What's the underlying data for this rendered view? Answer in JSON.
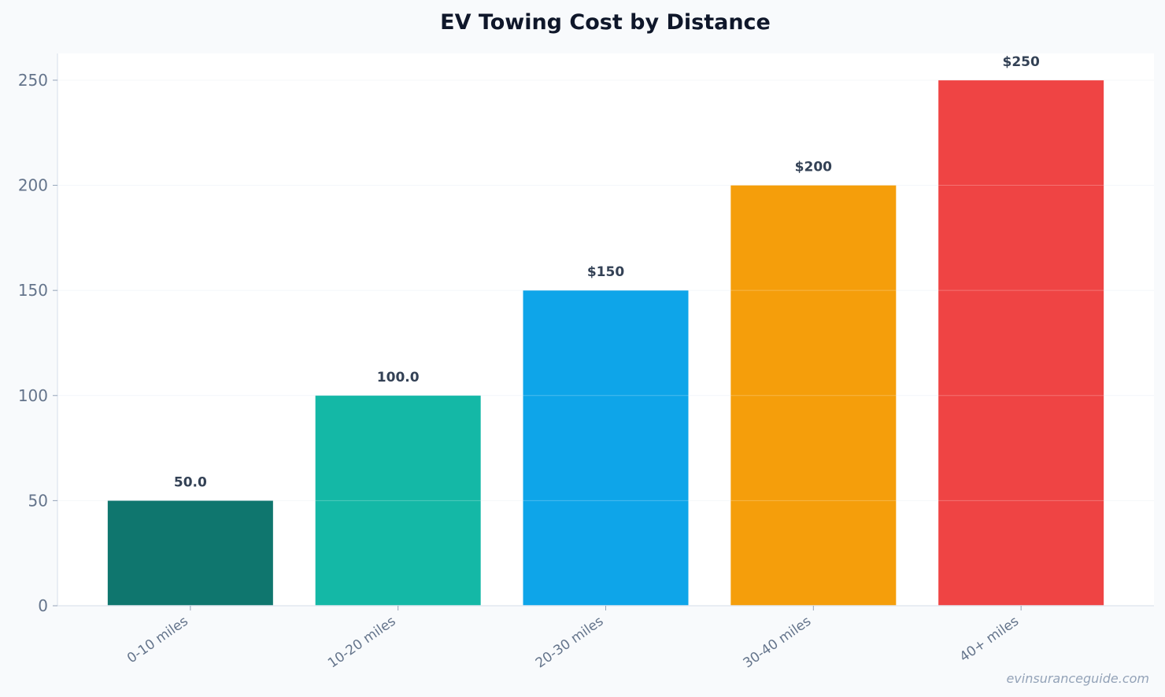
{
  "chart_data": {
    "type": "bar",
    "title": "EV Towing Cost by Distance",
    "xlabel": "",
    "ylabel": "",
    "categories": [
      "0-10 miles",
      "10-20 miles",
      "20-30 miles",
      "30-40 miles",
      "40+ miles"
    ],
    "values": [
      50,
      100,
      150,
      200,
      250
    ],
    "data_labels": [
      "50.0",
      "100.0",
      "$150",
      "$200",
      "$250"
    ],
    "colors": [
      "#0f766e",
      "#14b8a6",
      "#0ea5e9",
      "#f59e0b",
      "#ef4444"
    ],
    "ylim": [
      0,
      262.7
    ],
    "yticks": [
      0,
      50,
      100,
      150,
      200,
      250
    ],
    "grid": true,
    "legend": "none"
  },
  "watermark": "evinsuranceguide.com"
}
